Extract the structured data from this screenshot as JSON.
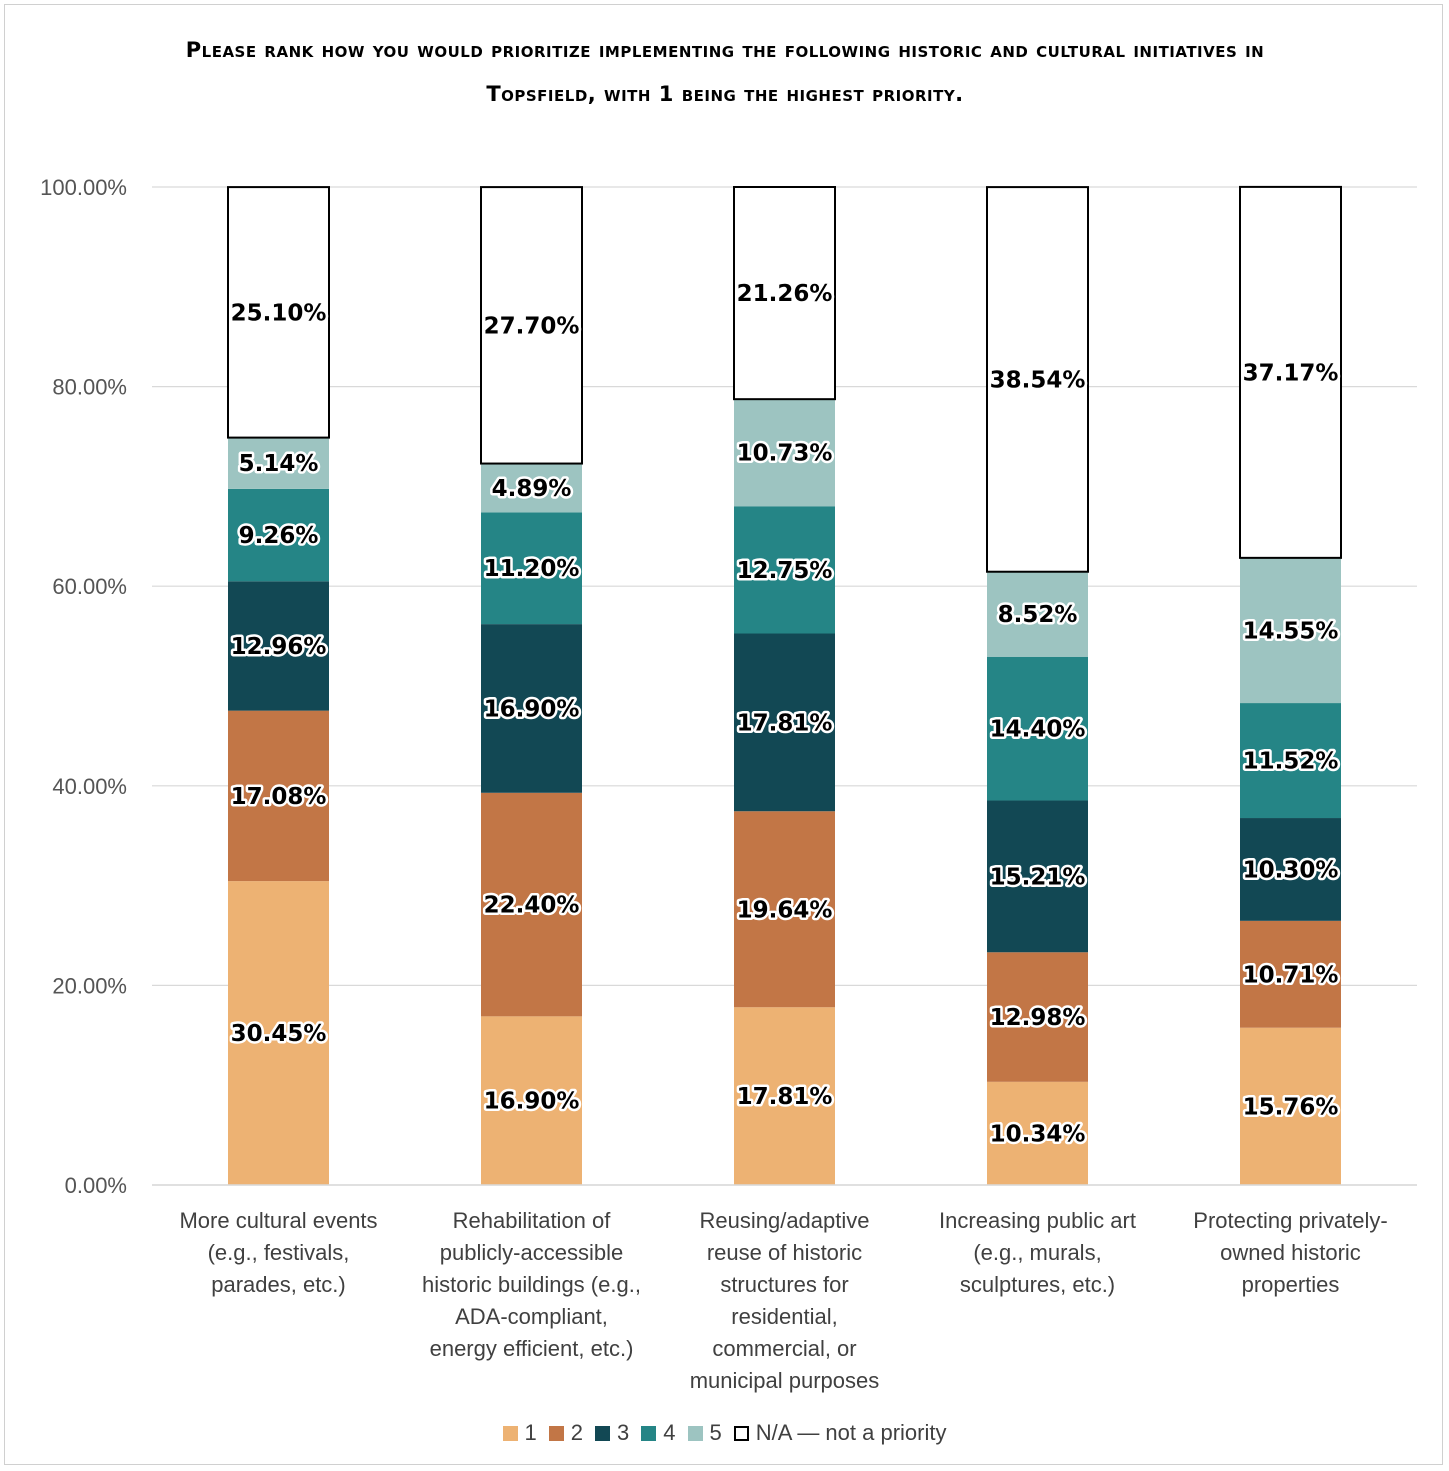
{
  "chart_data": {
    "type": "bar",
    "stacked": true,
    "title": "Please rank how you would prioritize implementing the following historic and cultural initiatives in Topsfield, with 1 being the highest priority.",
    "categories": [
      "More cultural events (e.g., festivals, parades, etc.)",
      "Rehabilitation of publicly-accessible historic buildings (e.g., ADA-compliant, energy efficient, etc.)",
      "Reusing/adaptive reuse of historic structures for residential, commercial, or municipal purposes",
      "Increasing public art (e.g., murals, sculptures, etc.)",
      "Protecting privately-owned historic properties"
    ],
    "category_lines": [
      [
        "More cultural events",
        "(e.g., festivals,",
        "parades, etc.)"
      ],
      [
        "Rehabilitation of",
        "publicly-accessible",
        "historic buildings (e.g.,",
        "ADA-compliant,",
        "energy efficient, etc.)"
      ],
      [
        "Reusing/adaptive",
        "reuse of historic",
        "structures for",
        "residential,",
        "commercial, or",
        "municipal purposes"
      ],
      [
        "Increasing public art",
        "(e.g., murals,",
        "sculptures, etc.)"
      ],
      [
        "Protecting privately-",
        "owned historic",
        "properties"
      ]
    ],
    "series": [
      {
        "name": "1",
        "color": "#EDB273",
        "values": [
          30.45,
          16.9,
          17.81,
          10.34,
          15.76
        ],
        "labels": [
          "30.45%",
          "16.90%",
          "17.81%",
          "10.34%",
          "15.76%"
        ]
      },
      {
        "name": "2",
        "color": "#C27646",
        "values": [
          17.08,
          22.4,
          19.64,
          12.98,
          10.71
        ],
        "labels": [
          "17.08%",
          "22.40%",
          "19.64%",
          "12.98%",
          "10.71%"
        ]
      },
      {
        "name": "3",
        "color": "#124854",
        "values": [
          12.96,
          16.9,
          17.81,
          15.21,
          10.3
        ],
        "labels": [
          "12.96%",
          "16.90%",
          "17.81%",
          "15.21%",
          "10.30%"
        ]
      },
      {
        "name": "4",
        "color": "#258586",
        "values": [
          9.26,
          11.2,
          12.75,
          14.4,
          11.52
        ],
        "labels": [
          "9.26%",
          "11.20%",
          "12.75%",
          "14.40%",
          "11.52%"
        ]
      },
      {
        "name": "5",
        "color": "#9DC4C1",
        "values": [
          5.14,
          4.89,
          10.73,
          8.52,
          14.55
        ],
        "labels": [
          "5.14%",
          "4.89%",
          "10.73%",
          "8.52%",
          "14.55%"
        ]
      },
      {
        "name": "N/A — not a priority",
        "color": "#FFFFFF",
        "values": [
          25.1,
          27.7,
          21.26,
          38.54,
          37.17
        ],
        "labels": [
          "25.10%",
          "27.70%",
          "21.26%",
          "38.54%",
          "37.17%"
        ]
      }
    ],
    "ylim": [
      0,
      100
    ],
    "yticks": [
      "0.00%",
      "20.00%",
      "40.00%",
      "60.00%",
      "80.00%",
      "100.00%"
    ],
    "grid": true,
    "legend_position": "bottom"
  }
}
